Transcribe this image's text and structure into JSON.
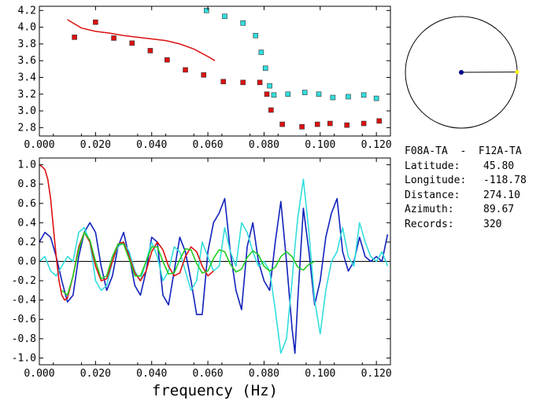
{
  "station_info": {
    "title": "F08A-TA  -  F12A-TA",
    "rows": [
      {
        "label": "Latitude:",
        "value": "45.80"
      },
      {
        "label": "Longitude:",
        "value": "-118.78"
      },
      {
        "label": "Distance:",
        "value": "274.10"
      },
      {
        "label": "Azimuth:",
        "value": "89.67"
      },
      {
        "label": "Records:",
        "value": "320"
      }
    ]
  },
  "colors": {
    "red": "#dd1111",
    "cyan": "#33dddd",
    "blue": "#1122bb",
    "green": "#22cc22",
    "yellow": "#ffee00",
    "navy": "#000088"
  },
  "chart_data": [
    {
      "type": "scatter",
      "xlim": [
        0,
        0.125
      ],
      "ylim": [
        2.7,
        4.25
      ],
      "x_ticks": [
        "0.000",
        "0.020",
        "0.040",
        "0.060",
        "0.080",
        "0.100",
        "0.120"
      ],
      "y_ticks": [
        "2.8",
        "3.0",
        "3.2",
        "3.4",
        "3.6",
        "3.8",
        "4.0",
        "4.2"
      ],
      "series": [
        {
          "color": "red",
          "kind": "squares",
          "x": [
            0.0125,
            0.02,
            0.0265,
            0.033,
            0.0395,
            0.0455,
            0.052,
            0.0585,
            0.0655,
            0.0725,
            0.0785,
            0.081,
            0.0825,
            0.0865,
            0.0935,
            0.099,
            0.1035,
            0.1095,
            0.1155,
            0.121
          ],
          "y": [
            3.88,
            4.06,
            3.87,
            3.81,
            3.72,
            3.61,
            3.49,
            3.43,
            3.35,
            3.34,
            3.34,
            3.2,
            3.01,
            2.84,
            2.81,
            2.84,
            2.85,
            2.83,
            2.85,
            2.88
          ]
        },
        {
          "color": "red",
          "kind": "line",
          "x": [
            0.01,
            0.015,
            0.02,
            0.025,
            0.03,
            0.035,
            0.04,
            0.045,
            0.05,
            0.055,
            0.06,
            0.0625
          ],
          "y": [
            4.09,
            3.99,
            3.95,
            3.93,
            3.9,
            3.88,
            3.86,
            3.84,
            3.8,
            3.74,
            3.65,
            3.6
          ]
        },
        {
          "color": "cyan",
          "kind": "squares",
          "x": [
            0.0595,
            0.066,
            0.0725,
            0.077,
            0.079,
            0.0805,
            0.082,
            0.0835,
            0.0885,
            0.0945,
            0.0995,
            0.1045,
            0.11,
            0.1155,
            0.12
          ],
          "y": [
            4.2,
            4.13,
            4.05,
            3.9,
            3.7,
            3.51,
            3.3,
            3.19,
            3.2,
            3.22,
            3.2,
            3.16,
            3.17,
            3.19,
            3.15
          ]
        }
      ]
    },
    {
      "type": "line",
      "xlabel": "frequency (Hz)",
      "xlim": [
        0,
        0.125
      ],
      "ylim": [
        -1.07,
        1.07
      ],
      "x_ticks": [
        "0.000",
        "0.020",
        "0.040",
        "0.060",
        "0.080",
        "0.100",
        "0.120"
      ],
      "y_ticks": [
        "1.0",
        "0.8",
        "0.6",
        "0.4",
        "0.2",
        "0.0",
        "-0.2",
        "-0.4",
        "-0.6",
        "-0.8",
        "-1.0"
      ],
      "series": [
        {
          "color": "blue",
          "x": [
            0.0,
            0.002,
            0.004,
            0.006,
            0.008,
            0.01,
            0.012,
            0.014,
            0.016,
            0.018,
            0.02,
            0.022,
            0.024,
            0.026,
            0.028,
            0.03,
            0.032,
            0.034,
            0.036,
            0.038,
            0.04,
            0.042,
            0.044,
            0.046,
            0.048,
            0.05,
            0.052,
            0.054,
            0.056,
            0.058,
            0.06,
            0.062,
            0.064,
            0.066,
            0.068,
            0.07,
            0.072,
            0.074,
            0.076,
            0.078,
            0.08,
            0.082,
            0.084,
            0.086,
            0.088,
            0.09,
            0.091,
            0.092,
            0.094,
            0.096,
            0.098,
            0.1,
            0.102,
            0.104,
            0.106,
            0.108,
            0.11,
            0.112,
            0.114,
            0.116,
            0.118,
            0.12,
            0.122,
            0.124
          ],
          "y": [
            0.2,
            0.3,
            0.25,
            0.05,
            -0.2,
            -0.42,
            -0.35,
            0.05,
            0.3,
            0.4,
            0.3,
            -0.05,
            -0.3,
            -0.15,
            0.15,
            0.3,
            0.05,
            -0.25,
            -0.35,
            -0.1,
            0.25,
            0.2,
            -0.35,
            -0.45,
            -0.1,
            0.25,
            0.1,
            -0.2,
            -0.55,
            -0.55,
            0.1,
            0.4,
            0.5,
            0.65,
            0.1,
            -0.3,
            -0.5,
            0.15,
            0.4,
            0.0,
            -0.2,
            -0.3,
            0.2,
            0.62,
            0.0,
            -0.7,
            -0.95,
            -0.4,
            0.55,
            0.1,
            -0.45,
            -0.2,
            0.25,
            0.5,
            0.65,
            0.1,
            -0.1,
            0.0,
            0.25,
            0.05,
            0.0,
            0.05,
            0.0,
            0.28
          ]
        },
        {
          "color": "cyan",
          "x": [
            0.0,
            0.002,
            0.004,
            0.006,
            0.008,
            0.01,
            0.012,
            0.014,
            0.016,
            0.018,
            0.02,
            0.022,
            0.024,
            0.026,
            0.028,
            0.03,
            0.032,
            0.034,
            0.036,
            0.038,
            0.04,
            0.042,
            0.044,
            0.046,
            0.048,
            0.05,
            0.052,
            0.054,
            0.056,
            0.058,
            0.06,
            0.062,
            0.064,
            0.066,
            0.068,
            0.07,
            0.072,
            0.074,
            0.076,
            0.078,
            0.08,
            0.082,
            0.084,
            0.086,
            0.088,
            0.09,
            0.091,
            0.092,
            0.094,
            0.096,
            0.098,
            0.1,
            0.102,
            0.104,
            0.106,
            0.108,
            0.11,
            0.112,
            0.114,
            0.116,
            0.118,
            0.12,
            0.122,
            0.124
          ],
          "y": [
            0.0,
            0.05,
            -0.1,
            -0.15,
            -0.05,
            0.05,
            0.0,
            0.3,
            0.35,
            0.2,
            -0.2,
            -0.3,
            -0.25,
            0.0,
            0.15,
            0.2,
            0.1,
            -0.1,
            -0.2,
            0.0,
            0.2,
            0.05,
            -0.2,
            -0.1,
            0.15,
            0.1,
            -0.1,
            -0.3,
            -0.2,
            0.2,
            0.05,
            -0.1,
            -0.05,
            0.35,
            0.1,
            -0.05,
            0.4,
            0.3,
            0.1,
            -0.05,
            0.0,
            -0.1,
            -0.5,
            -0.95,
            -0.8,
            -0.2,
            0.15,
            0.45,
            0.85,
            0.3,
            -0.4,
            -0.75,
            -0.3,
            0.0,
            0.1,
            0.35,
            0.05,
            -0.05,
            0.4,
            0.2,
            0.05,
            0.0,
            0.1,
            -0.05
          ]
        },
        {
          "color": "red",
          "x": [
            0.0,
            0.001,
            0.002,
            0.003,
            0.004,
            0.005,
            0.006,
            0.007,
            0.008,
            0.009,
            0.01,
            0.012,
            0.014,
            0.016,
            0.018,
            0.02,
            0.022,
            0.024,
            0.026,
            0.028,
            0.03,
            0.032,
            0.034,
            0.036,
            0.038,
            0.04,
            0.042,
            0.044,
            0.046,
            0.048,
            0.05,
            0.052,
            0.054,
            0.056,
            0.058,
            0.06,
            0.062
          ],
          "y": [
            1.0,
            0.98,
            0.95,
            0.85,
            0.65,
            0.35,
            0.05,
            -0.2,
            -0.35,
            -0.4,
            -0.38,
            -0.15,
            0.15,
            0.3,
            0.2,
            -0.05,
            -0.2,
            -0.18,
            0.0,
            0.18,
            0.2,
            0.05,
            -0.12,
            -0.2,
            -0.1,
            0.1,
            0.2,
            0.12,
            -0.05,
            -0.15,
            -0.12,
            0.05,
            0.15,
            0.1,
            -0.05,
            -0.15,
            -0.1
          ]
        },
        {
          "color": "green",
          "x": [
            0.008,
            0.01,
            0.012,
            0.014,
            0.016,
            0.018,
            0.02,
            0.022,
            0.024,
            0.026,
            0.028,
            0.03,
            0.032,
            0.034,
            0.036,
            0.038,
            0.04,
            0.042,
            0.044,
            0.046,
            0.048,
            0.05,
            0.052,
            0.054,
            0.056,
            0.058,
            0.06,
            0.062,
            0.064,
            0.066,
            0.068,
            0.07,
            0.072,
            0.074,
            0.076,
            0.078,
            0.08,
            0.082,
            0.084,
            0.086,
            0.088,
            0.09,
            0.092,
            0.094,
            0.096,
            0.098
          ],
          "y": [
            -0.3,
            -0.35,
            -0.15,
            0.12,
            0.3,
            0.22,
            0.0,
            -0.18,
            -0.15,
            0.05,
            0.18,
            0.18,
            0.02,
            -0.15,
            -0.15,
            0.0,
            0.15,
            0.15,
            0.0,
            -0.13,
            -0.12,
            0.02,
            0.13,
            0.12,
            -0.02,
            -0.12,
            -0.1,
            0.03,
            0.12,
            0.1,
            -0.03,
            -0.11,
            -0.08,
            0.04,
            0.11,
            0.07,
            -0.05,
            -0.1,
            -0.06,
            0.05,
            0.1,
            0.05,
            -0.06,
            -0.09,
            -0.03,
            0.0
          ]
        }
      ]
    }
  ],
  "azimuth_dial": {
    "azimuth_deg": 89.67
  }
}
